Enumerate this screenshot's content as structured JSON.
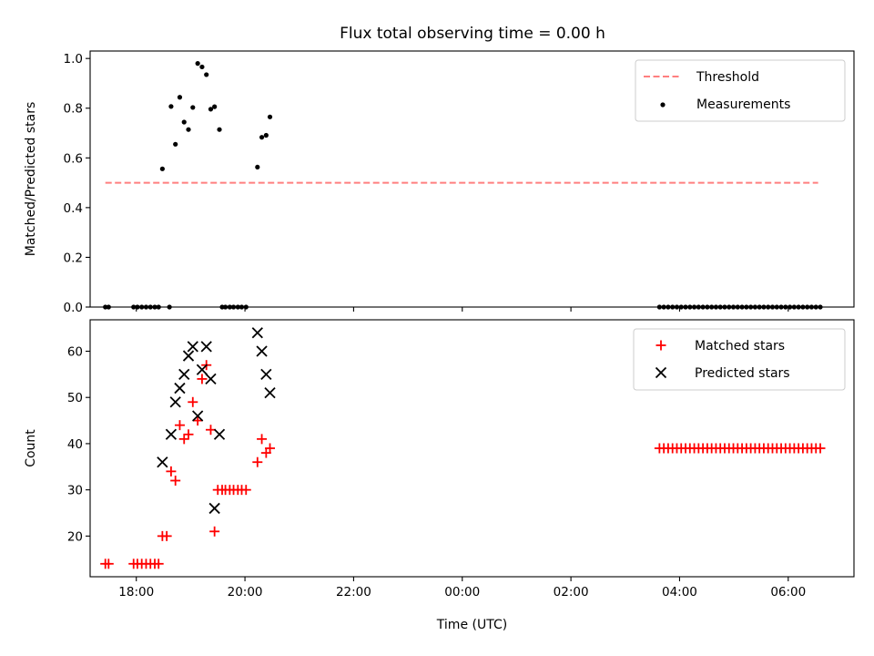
{
  "title": "Flux total observing time = 0.00 h",
  "chart_data": [
    {
      "type": "scatter",
      "ylabel": "Matched/Predicted stars",
      "xlim": [
        -0.78,
        13.28
      ],
      "ylim": [
        0.0,
        1.03
      ],
      "xticks": [
        {
          "x": 0.07,
          "label": ""
        },
        {
          "x": 2.07,
          "label": ""
        },
        {
          "x": 4.07,
          "label": ""
        },
        {
          "x": 6.07,
          "label": ""
        },
        {
          "x": 8.07,
          "label": ""
        },
        {
          "x": 10.07,
          "label": ""
        },
        {
          "x": 12.07,
          "label": ""
        }
      ],
      "yticks": [
        0.0,
        0.2,
        0.4,
        0.6,
        0.8,
        1.0
      ],
      "yticks_labels": [
        "0.0",
        "0.2",
        "0.4",
        "0.6",
        "0.8",
        "1.0"
      ],
      "threshold": {
        "name": "Threshold",
        "value": 0.5,
        "x_range": [
          -0.5,
          12.62
        ],
        "color": "#ff7f7f"
      },
      "series": [
        {
          "name": "Measurements",
          "color": "#000000",
          "points": [
            [
              -0.5,
              0.0
            ],
            [
              -0.44,
              0.0
            ],
            [
              0.02,
              0.0
            ],
            [
              0.09,
              0.0
            ],
            [
              0.17,
              0.0
            ],
            [
              0.25,
              0.0
            ],
            [
              0.33,
              0.0
            ],
            [
              0.41,
              0.0
            ],
            [
              0.48,
              0.0
            ],
            [
              0.55,
              0.556
            ],
            [
              0.68,
              0.0
            ],
            [
              0.71,
              0.807
            ],
            [
              0.79,
              0.655
            ],
            [
              0.87,
              0.844
            ],
            [
              0.95,
              0.744
            ],
            [
              1.03,
              0.714
            ],
            [
              1.11,
              0.803
            ],
            [
              1.2,
              0.98
            ],
            [
              1.28,
              0.966
            ],
            [
              1.36,
              0.935
            ],
            [
              1.44,
              0.796
            ],
            [
              1.51,
              0.806
            ],
            [
              1.6,
              0.714
            ],
            [
              1.65,
              0.0
            ],
            [
              1.71,
              0.0
            ],
            [
              1.79,
              0.0
            ],
            [
              1.86,
              0.0
            ],
            [
              1.94,
              0.0
            ],
            [
              2.01,
              0.0
            ],
            [
              2.09,
              0.0
            ],
            [
              2.3,
              0.563
            ],
            [
              2.38,
              0.683
            ],
            [
              2.46,
              0.691
            ],
            [
              2.53,
              0.765
            ],
            [
              9.7,
              0.0
            ],
            [
              9.78,
              0.0
            ],
            [
              9.86,
              0.0
            ],
            [
              9.94,
              0.0
            ],
            [
              10.02,
              0.0
            ],
            [
              10.1,
              0.0
            ],
            [
              10.18,
              0.0
            ],
            [
              10.26,
              0.0
            ],
            [
              10.34,
              0.0
            ],
            [
              10.42,
              0.0
            ],
            [
              10.5,
              0.0
            ],
            [
              10.58,
              0.0
            ],
            [
              10.66,
              0.0
            ],
            [
              10.74,
              0.0
            ],
            [
              10.82,
              0.0
            ],
            [
              10.9,
              0.0
            ],
            [
              10.98,
              0.0
            ],
            [
              11.06,
              0.0
            ],
            [
              11.14,
              0.0
            ],
            [
              11.22,
              0.0
            ],
            [
              11.3,
              0.0
            ],
            [
              11.38,
              0.0
            ],
            [
              11.46,
              0.0
            ],
            [
              11.54,
              0.0
            ],
            [
              11.62,
              0.0
            ],
            [
              11.7,
              0.0
            ],
            [
              11.78,
              0.0
            ],
            [
              11.86,
              0.0
            ],
            [
              11.94,
              0.0
            ],
            [
              12.02,
              0.0
            ],
            [
              12.1,
              0.0
            ],
            [
              12.18,
              0.0
            ],
            [
              12.26,
              0.0
            ],
            [
              12.34,
              0.0
            ],
            [
              12.42,
              0.0
            ],
            [
              12.5,
              0.0
            ],
            [
              12.58,
              0.0
            ],
            [
              12.66,
              0.0
            ]
          ]
        }
      ],
      "legend": {
        "location": "upper right",
        "entries": [
          "Threshold",
          "Measurements"
        ]
      }
    },
    {
      "type": "scatter",
      "xlabel": "Time (UTC)",
      "ylabel": "Count",
      "xlim": [
        -0.78,
        13.28
      ],
      "ylim": [
        11.2,
        66.8
      ],
      "xticks": [
        {
          "x": 0.07,
          "label": "18:00"
        },
        {
          "x": 2.07,
          "label": "20:00"
        },
        {
          "x": 4.07,
          "label": "22:00"
        },
        {
          "x": 6.07,
          "label": "00:00"
        },
        {
          "x": 8.07,
          "label": "02:00"
        },
        {
          "x": 10.07,
          "label": "04:00"
        },
        {
          "x": 12.07,
          "label": "06:00"
        }
      ],
      "yticks": [
        20,
        30,
        40,
        50,
        60
      ],
      "series": [
        {
          "name": "Matched stars",
          "marker": "+",
          "color": "#ff0000",
          "points": [
            [
              -0.5,
              14
            ],
            [
              -0.44,
              14
            ],
            [
              0.02,
              14
            ],
            [
              0.09,
              14
            ],
            [
              0.17,
              14
            ],
            [
              0.25,
              14
            ],
            [
              0.33,
              14
            ],
            [
              0.41,
              14
            ],
            [
              0.48,
              14
            ],
            [
              0.55,
              20
            ],
            [
              0.63,
              20
            ],
            [
              0.71,
              34
            ],
            [
              0.79,
              32
            ],
            [
              0.87,
              44
            ],
            [
              0.95,
              41
            ],
            [
              1.03,
              42
            ],
            [
              1.11,
              49
            ],
            [
              1.2,
              45
            ],
            [
              1.28,
              54
            ],
            [
              1.36,
              57
            ],
            [
              1.44,
              43
            ],
            [
              1.51,
              21
            ],
            [
              1.57,
              30
            ],
            [
              1.65,
              30
            ],
            [
              1.71,
              30
            ],
            [
              1.79,
              30
            ],
            [
              1.86,
              30
            ],
            [
              1.94,
              30
            ],
            [
              2.01,
              30
            ],
            [
              2.09,
              30
            ],
            [
              2.3,
              36
            ],
            [
              2.38,
              41
            ],
            [
              2.46,
              38
            ],
            [
              2.53,
              39
            ],
            [
              9.7,
              39
            ],
            [
              9.78,
              39
            ],
            [
              9.86,
              39
            ],
            [
              9.94,
              39
            ],
            [
              10.02,
              39
            ],
            [
              10.1,
              39
            ],
            [
              10.18,
              39
            ],
            [
              10.26,
              39
            ],
            [
              10.34,
              39
            ],
            [
              10.42,
              39
            ],
            [
              10.5,
              39
            ],
            [
              10.58,
              39
            ],
            [
              10.66,
              39
            ],
            [
              10.74,
              39
            ],
            [
              10.82,
              39
            ],
            [
              10.9,
              39
            ],
            [
              10.98,
              39
            ],
            [
              11.06,
              39
            ],
            [
              11.14,
              39
            ],
            [
              11.22,
              39
            ],
            [
              11.3,
              39
            ],
            [
              11.38,
              39
            ],
            [
              11.46,
              39
            ],
            [
              11.54,
              39
            ],
            [
              11.62,
              39
            ],
            [
              11.7,
              39
            ],
            [
              11.78,
              39
            ],
            [
              11.86,
              39
            ],
            [
              11.94,
              39
            ],
            [
              12.02,
              39
            ],
            [
              12.1,
              39
            ],
            [
              12.18,
              39
            ],
            [
              12.26,
              39
            ],
            [
              12.34,
              39
            ],
            [
              12.42,
              39
            ],
            [
              12.5,
              39
            ],
            [
              12.58,
              39
            ],
            [
              12.66,
              39
            ]
          ]
        },
        {
          "name": "Predicted stars",
          "marker": "x",
          "color": "#000000",
          "points": [
            [
              0.55,
              36
            ],
            [
              0.71,
              42
            ],
            [
              0.79,
              49
            ],
            [
              0.87,
              52
            ],
            [
              0.95,
              55
            ],
            [
              1.03,
              59
            ],
            [
              1.11,
              61
            ],
            [
              1.2,
              46
            ],
            [
              1.28,
              56
            ],
            [
              1.36,
              61
            ],
            [
              1.44,
              54
            ],
            [
              1.51,
              26
            ],
            [
              1.6,
              42
            ],
            [
              2.3,
              64
            ],
            [
              2.38,
              60
            ],
            [
              2.46,
              55
            ],
            [
              2.53,
              51
            ]
          ]
        }
      ],
      "legend": {
        "location": "upper right",
        "entries": [
          "Matched stars",
          "Predicted stars"
        ]
      }
    }
  ]
}
